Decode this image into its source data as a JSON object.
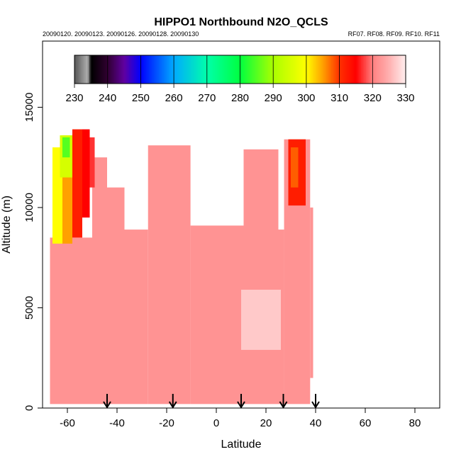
{
  "chart_data": {
    "type": "curtain",
    "title": "HIPPO1 Northbound N2O_QCLS",
    "subtitle_left": "20090120. 20090123. 20090126. 20090128. 20090130",
    "subtitle_right": "RF07. RF08. RF09. RF10. RF11",
    "x_label": "Latitude",
    "y_label": "Altitude (m)",
    "xlim": [
      -70,
      90
    ],
    "xticks": [
      -60,
      -40,
      -20,
      0,
      20,
      40,
      60,
      80
    ],
    "ylim": [
      0,
      18300
    ],
    "yticks": [
      0,
      5000,
      10000,
      15000
    ],
    "colorbar": {
      "range": [
        230,
        330
      ],
      "ticks": [
        230,
        240,
        250,
        260,
        270,
        280,
        290,
        300,
        310,
        320,
        330
      ],
      "stops": [
        [
          230,
          "#555555"
        ],
        [
          234,
          "#b0b0b0"
        ],
        [
          235,
          "#000000"
        ],
        [
          240,
          "#300030"
        ],
        [
          245,
          "#6000a0"
        ],
        [
          250,
          "#0000ff"
        ],
        [
          260,
          "#00aaff"
        ],
        [
          270,
          "#00ffaa"
        ],
        [
          280,
          "#00ff40"
        ],
        [
          290,
          "#aaff00"
        ],
        [
          300,
          "#ffff00"
        ],
        [
          305,
          "#ffa000"
        ],
        [
          310,
          "#ff3000"
        ],
        [
          315,
          "#ff0000"
        ],
        [
          320,
          "#ff8080"
        ],
        [
          325,
          "#ffb0b0"
        ],
        [
          330,
          "#ffeeee"
        ]
      ]
    },
    "cells": [
      {
        "lat": [
          -67,
          -50
        ],
        "alt": [
          200,
          8500
        ],
        "value": 322
      },
      {
        "lat": [
          -50,
          -44
        ],
        "alt": [
          200,
          12500
        ],
        "value": 322
      },
      {
        "lat": [
          -44,
          -37
        ],
        "alt": [
          200,
          11000
        ],
        "value": 322
      },
      {
        "lat": [
          -37,
          -27.5
        ],
        "alt": [
          200,
          8900
        ],
        "value": 322
      },
      {
        "lat": [
          -27.5,
          -10.4
        ],
        "alt": [
          200,
          13100
        ],
        "value": 322
      },
      {
        "lat": [
          -10.4,
          11
        ],
        "alt": [
          200,
          9100
        ],
        "value": 322
      },
      {
        "lat": [
          11,
          25
        ],
        "alt": [
          200,
          12900
        ],
        "value": 322
      },
      {
        "lat": [
          25,
          27.3
        ],
        "alt": [
          200,
          8900
        ],
        "value": 322
      },
      {
        "lat": [
          27.3,
          37.8
        ],
        "alt": [
          200,
          13400
        ],
        "value": 322
      },
      {
        "lat": [
          37.8,
          39
        ],
        "alt": [
          1500,
          10000
        ],
        "value": 322
      },
      {
        "lat": [
          10,
          26
        ],
        "alt": [
          2900,
          5900
        ],
        "value": 327
      },
      {
        "lat": [
          -66,
          -62
        ],
        "alt": [
          8200,
          13000
        ],
        "value": 300
      },
      {
        "lat": [
          -62,
          -58
        ],
        "alt": [
          8200,
          13600
        ],
        "value": 305
      },
      {
        "lat": [
          -58,
          -54
        ],
        "alt": [
          8500,
          13900
        ],
        "value": 312
      },
      {
        "lat": [
          -54,
          -51
        ],
        "alt": [
          9500,
          13900
        ],
        "value": 315
      },
      {
        "lat": [
          -51,
          -49
        ],
        "alt": [
          11000,
          13500
        ],
        "value": 317
      },
      {
        "lat": [
          -63,
          -58
        ],
        "alt": [
          11500,
          13600
        ],
        "value": 295
      },
      {
        "lat": [
          -62,
          -59
        ],
        "alt": [
          12500,
          13500
        ],
        "value": 285
      },
      {
        "lat": [
          29,
          36
        ],
        "alt": [
          10100,
          13400
        ],
        "value": 312
      },
      {
        "lat": [
          30,
          33
        ],
        "alt": [
          11000,
          13000
        ],
        "value": 308
      }
    ],
    "arrows": [
      -44,
      -17.5,
      10,
      27,
      40
    ]
  }
}
